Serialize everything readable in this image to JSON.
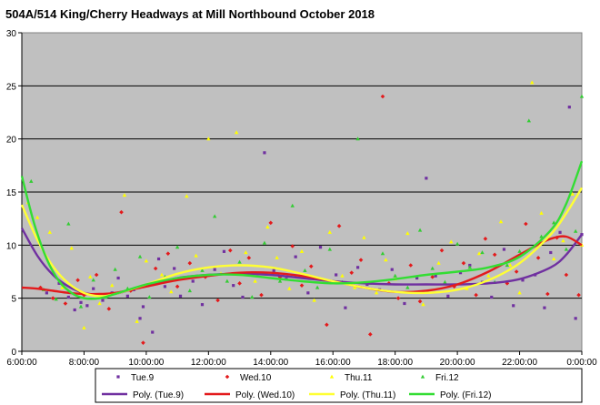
{
  "chart_data": {
    "type": "scatter",
    "title": "504A/514 King/Cherry Headways at Mill  Northbound October 2018",
    "xlabel": "",
    "ylabel": "",
    "x_range": [
      "6:00:00",
      "0:00:00"
    ],
    "x_ticks": [
      "6:00:00",
      "8:00:00",
      "10:00:00",
      "12:00:00",
      "14:00:00",
      "16:00:00",
      "18:00:00",
      "20:00:00",
      "22:00:00",
      "0:00:00"
    ],
    "ylim": [
      0,
      30
    ],
    "y_ticks": [
      "0",
      "5",
      "10",
      "15",
      "20",
      "25",
      "30"
    ],
    "grid": "horizontal",
    "background": "#c0c0c0",
    "legend_position": "bottom",
    "series": [
      {
        "name": "Tue.9",
        "color": "#7030a0",
        "marker": "square",
        "points": [
          [
            6.8,
            5.5
          ],
          [
            7.2,
            6.4
          ],
          [
            7.5,
            5.1
          ],
          [
            7.7,
            3.9
          ],
          [
            7.9,
            4.6
          ],
          [
            8.1,
            4.3
          ],
          [
            8.3,
            5.9
          ],
          [
            8.6,
            4.8
          ],
          [
            8.9,
            5.5
          ],
          [
            9.1,
            6.9
          ],
          [
            9.4,
            5.2
          ],
          [
            9.6,
            5.8
          ],
          [
            9.8,
            3.1
          ],
          [
            9.9,
            4.2
          ],
          [
            10.2,
            1.8
          ],
          [
            10.4,
            8.7
          ],
          [
            10.6,
            6.1
          ],
          [
            10.9,
            7.8
          ],
          [
            11.1,
            5.2
          ],
          [
            11.5,
            6.6
          ],
          [
            11.8,
            4.4
          ],
          [
            12.2,
            7.7
          ],
          [
            12.5,
            9.4
          ],
          [
            12.8,
            6.2
          ],
          [
            13.1,
            5.1
          ],
          [
            13.4,
            7.4
          ],
          [
            13.8,
            18.7
          ],
          [
            14.1,
            7.6
          ],
          [
            14.5,
            6.8
          ],
          [
            14.8,
            8.9
          ],
          [
            15.2,
            5.5
          ],
          [
            15.6,
            9.8
          ],
          [
            16.1,
            7.2
          ],
          [
            16.4,
            4.1
          ],
          [
            16.8,
            7.9
          ],
          [
            17.1,
            6.3
          ],
          [
            17.5,
            5.8
          ],
          [
            17.9,
            7.7
          ],
          [
            18.3,
            4.5
          ],
          [
            18.7,
            6.9
          ],
          [
            19.0,
            16.3
          ],
          [
            19.3,
            7.1
          ],
          [
            19.7,
            5.2
          ],
          [
            20.1,
            7.4
          ],
          [
            20.4,
            8.1
          ],
          [
            20.8,
            6.5
          ],
          [
            21.1,
            5.1
          ],
          [
            21.5,
            9.6
          ],
          [
            21.8,
            4.3
          ],
          [
            22.1,
            6.7
          ],
          [
            22.5,
            7.2
          ],
          [
            22.8,
            4.1
          ],
          [
            23.0,
            9.3
          ],
          [
            23.3,
            11.2
          ],
          [
            23.6,
            23.0
          ],
          [
            23.8,
            3.1
          ],
          [
            24.0,
            11.0
          ]
        ]
      },
      {
        "name": "Wed.10",
        "color": "#e31a1c",
        "marker": "diamond",
        "points": [
          [
            6.6,
            6.0
          ],
          [
            7.0,
            5.0
          ],
          [
            7.4,
            4.5
          ],
          [
            7.8,
            6.7
          ],
          [
            8.0,
            5.3
          ],
          [
            8.4,
            7.2
          ],
          [
            8.8,
            4.0
          ],
          [
            9.2,
            13.1
          ],
          [
            9.5,
            5.7
          ],
          [
            9.9,
            0.8
          ],
          [
            10.3,
            7.8
          ],
          [
            10.7,
            9.2
          ],
          [
            11.0,
            6.1
          ],
          [
            11.4,
            8.3
          ],
          [
            11.9,
            7.0
          ],
          [
            12.3,
            4.8
          ],
          [
            12.7,
            9.5
          ],
          [
            13.0,
            6.4
          ],
          [
            13.3,
            8.8
          ],
          [
            13.7,
            5.3
          ],
          [
            14.0,
            12.1
          ],
          [
            14.3,
            7.0
          ],
          [
            14.7,
            9.9
          ],
          [
            15.0,
            6.2
          ],
          [
            15.3,
            8.0
          ],
          [
            15.8,
            2.5
          ],
          [
            16.2,
            11.8
          ],
          [
            16.6,
            7.4
          ],
          [
            16.9,
            8.6
          ],
          [
            17.2,
            1.6
          ],
          [
            17.6,
            24.0
          ],
          [
            17.8,
            6.4
          ],
          [
            18.1,
            5.0
          ],
          [
            18.5,
            8.1
          ],
          [
            18.8,
            4.7
          ],
          [
            19.2,
            7.0
          ],
          [
            19.5,
            9.5
          ],
          [
            19.9,
            6.1
          ],
          [
            20.2,
            8.3
          ],
          [
            20.6,
            5.3
          ],
          [
            20.9,
            10.6
          ],
          [
            21.2,
            9.1
          ],
          [
            21.6,
            6.4
          ],
          [
            21.9,
            7.5
          ],
          [
            22.2,
            12.0
          ],
          [
            22.6,
            8.8
          ],
          [
            22.9,
            5.4
          ],
          [
            23.2,
            10.7
          ],
          [
            23.5,
            7.2
          ],
          [
            23.9,
            5.3
          ]
        ]
      },
      {
        "name": "Thu.11",
        "color": "#ffff00",
        "marker": "triangle",
        "points": [
          [
            6.2,
            14.0
          ],
          [
            6.5,
            12.6
          ],
          [
            6.9,
            11.2
          ],
          [
            7.3,
            6.0
          ],
          [
            7.6,
            9.7
          ],
          [
            8.0,
            2.2
          ],
          [
            8.2,
            7.0
          ],
          [
            8.5,
            4.5
          ],
          [
            8.9,
            6.2
          ],
          [
            9.3,
            14.7
          ],
          [
            9.7,
            2.8
          ],
          [
            10.0,
            8.5
          ],
          [
            10.5,
            7.2
          ],
          [
            10.8,
            5.6
          ],
          [
            11.3,
            14.6
          ],
          [
            11.6,
            9.0
          ],
          [
            12.0,
            20.0
          ],
          [
            12.4,
            7.3
          ],
          [
            12.9,
            20.6
          ],
          [
            13.2,
            9.3
          ],
          [
            13.5,
            6.6
          ],
          [
            13.9,
            11.7
          ],
          [
            14.2,
            8.8
          ],
          [
            14.6,
            5.9
          ],
          [
            15.0,
            9.4
          ],
          [
            15.4,
            4.8
          ],
          [
            15.9,
            11.2
          ],
          [
            16.3,
            7.1
          ],
          [
            16.7,
            6.0
          ],
          [
            17.0,
            10.7
          ],
          [
            17.4,
            5.5
          ],
          [
            17.7,
            8.6
          ],
          [
            18.0,
            6.8
          ],
          [
            18.4,
            11.1
          ],
          [
            18.9,
            4.4
          ],
          [
            19.4,
            8.3
          ],
          [
            19.8,
            10.3
          ],
          [
            20.3,
            5.9
          ],
          [
            20.7,
            9.2
          ],
          [
            21.0,
            7.1
          ],
          [
            21.4,
            12.2
          ],
          [
            21.7,
            8.1
          ],
          [
            22.0,
            5.5
          ],
          [
            22.4,
            25.3
          ],
          [
            22.7,
            13.0
          ],
          [
            23.1,
            8.7
          ],
          [
            23.4,
            10.4
          ],
          [
            23.7,
            14.8
          ],
          [
            24.0,
            10.0
          ]
        ]
      },
      {
        "name": "Fri.12",
        "color": "#33cc33",
        "marker": "triangle",
        "points": [
          [
            6.3,
            16.0
          ],
          [
            6.7,
            5.8
          ],
          [
            7.1,
            4.9
          ],
          [
            7.5,
            12.0
          ],
          [
            7.9,
            4.2
          ],
          [
            8.3,
            6.7
          ],
          [
            8.7,
            5.1
          ],
          [
            9.0,
            7.7
          ],
          [
            9.4,
            5.9
          ],
          [
            9.8,
            8.9
          ],
          [
            10.1,
            5.1
          ],
          [
            10.6,
            7.0
          ],
          [
            11.0,
            9.8
          ],
          [
            11.4,
            5.7
          ],
          [
            11.8,
            7.6
          ],
          [
            12.2,
            12.7
          ],
          [
            12.6,
            6.6
          ],
          [
            13.0,
            8.4
          ],
          [
            13.4,
            5.1
          ],
          [
            13.8,
            10.2
          ],
          [
            14.3,
            6.6
          ],
          [
            14.7,
            13.7
          ],
          [
            15.1,
            7.6
          ],
          [
            15.5,
            6.0
          ],
          [
            15.9,
            9.6
          ],
          [
            16.3,
            6.5
          ],
          [
            16.8,
            20.0
          ],
          [
            17.2,
            6.4
          ],
          [
            17.6,
            9.2
          ],
          [
            18.0,
            7.1
          ],
          [
            18.4,
            6.0
          ],
          [
            18.8,
            11.4
          ],
          [
            19.2,
            7.8
          ],
          [
            19.6,
            6.5
          ],
          [
            20.0,
            10.1
          ],
          [
            20.4,
            7.9
          ],
          [
            20.8,
            9.3
          ],
          [
            21.2,
            6.5
          ],
          [
            21.6,
            8.1
          ],
          [
            22.0,
            9.4
          ],
          [
            22.3,
            21.7
          ],
          [
            22.7,
            10.8
          ],
          [
            23.1,
            12.1
          ],
          [
            23.5,
            9.6
          ],
          [
            23.8,
            11.3
          ],
          [
            24.0,
            24.0
          ]
        ]
      }
    ],
    "trendlines": [
      {
        "name": "Poly. (Tue.9)",
        "color": "#7030a0",
        "points": [
          [
            6.0,
            11.6
          ],
          [
            6.5,
            9.0
          ],
          [
            7.0,
            7.2
          ],
          [
            7.5,
            6.1
          ],
          [
            8.0,
            5.5
          ],
          [
            8.5,
            5.3
          ],
          [
            9.0,
            5.4
          ],
          [
            9.5,
            5.8
          ],
          [
            10.0,
            6.2
          ],
          [
            11.0,
            6.9
          ],
          [
            12.0,
            7.2
          ],
          [
            13.0,
            7.3
          ],
          [
            14.0,
            7.2
          ],
          [
            15.0,
            6.9
          ],
          [
            16.0,
            6.6
          ],
          [
            17.0,
            6.4
          ],
          [
            18.0,
            6.3
          ],
          [
            19.0,
            6.3
          ],
          [
            20.0,
            6.3
          ],
          [
            21.0,
            6.4
          ],
          [
            22.0,
            6.8
          ],
          [
            23.0,
            7.9
          ],
          [
            23.5,
            9.1
          ],
          [
            24.0,
            11.0
          ]
        ]
      },
      {
        "name": "Poly. (Wed.10)",
        "color": "#e31a1c",
        "points": [
          [
            6.0,
            6.0
          ],
          [
            6.5,
            5.9
          ],
          [
            7.0,
            5.7
          ],
          [
            7.5,
            5.5
          ],
          [
            8.0,
            5.4
          ],
          [
            8.5,
            5.4
          ],
          [
            9.0,
            5.5
          ],
          [
            10.0,
            6.1
          ],
          [
            11.0,
            6.7
          ],
          [
            12.0,
            7.1
          ],
          [
            13.0,
            7.4
          ],
          [
            14.0,
            7.4
          ],
          [
            15.0,
            7.1
          ],
          [
            16.0,
            6.6
          ],
          [
            17.0,
            6.0
          ],
          [
            18.0,
            5.6
          ],
          [
            19.0,
            5.7
          ],
          [
            20.0,
            6.3
          ],
          [
            21.0,
            7.5
          ],
          [
            22.0,
            9.1
          ],
          [
            22.5,
            9.9
          ],
          [
            23.0,
            10.6
          ],
          [
            23.5,
            10.8
          ],
          [
            24.0,
            10.0
          ]
        ]
      },
      {
        "name": "Poly. (Thu.11)",
        "color": "#ffff33",
        "points": [
          [
            6.0,
            13.8
          ],
          [
            6.5,
            10.5
          ],
          [
            7.0,
            8.0
          ],
          [
            7.5,
            6.4
          ],
          [
            8.0,
            5.5
          ],
          [
            8.5,
            5.2
          ],
          [
            9.0,
            5.4
          ],
          [
            10.0,
            6.3
          ],
          [
            11.0,
            7.3
          ],
          [
            12.0,
            7.9
          ],
          [
            13.0,
            8.1
          ],
          [
            14.0,
            7.9
          ],
          [
            15.0,
            7.3
          ],
          [
            16.0,
            6.6
          ],
          [
            17.0,
            6.0
          ],
          [
            18.0,
            5.6
          ],
          [
            19.0,
            5.5
          ],
          [
            20.0,
            5.8
          ],
          [
            21.0,
            6.7
          ],
          [
            22.0,
            8.3
          ],
          [
            23.0,
            11.0
          ],
          [
            23.5,
            13.0
          ],
          [
            24.0,
            15.4
          ]
        ]
      },
      {
        "name": "Poly. (Fri.12)",
        "color": "#33dd33",
        "points": [
          [
            6.0,
            16.5
          ],
          [
            6.4,
            12.0
          ],
          [
            6.8,
            8.7
          ],
          [
            7.2,
            6.6
          ],
          [
            7.6,
            5.5
          ],
          [
            8.0,
            5.0
          ],
          [
            8.5,
            5.0
          ],
          [
            9.0,
            5.4
          ],
          [
            10.0,
            6.3
          ],
          [
            11.0,
            6.9
          ],
          [
            12.0,
            7.2
          ],
          [
            13.0,
            7.2
          ],
          [
            14.0,
            6.9
          ],
          [
            15.0,
            6.6
          ],
          [
            16.0,
            6.4
          ],
          [
            17.0,
            6.5
          ],
          [
            18.0,
            6.8
          ],
          [
            19.0,
            7.2
          ],
          [
            20.0,
            7.5
          ],
          [
            21.0,
            7.9
          ],
          [
            22.0,
            8.9
          ],
          [
            23.0,
            11.4
          ],
          [
            23.5,
            13.9
          ],
          [
            24.0,
            17.9
          ]
        ]
      }
    ],
    "legend": {
      "markers": [
        "Tue.9",
        "Wed.10",
        "Thu.11",
        "Fri.12"
      ],
      "lines": [
        "Poly. (Tue.9)",
        "Poly. (Wed.10)",
        "Poly. (Thu.11)",
        "Poly. (Fri.12)"
      ]
    }
  }
}
